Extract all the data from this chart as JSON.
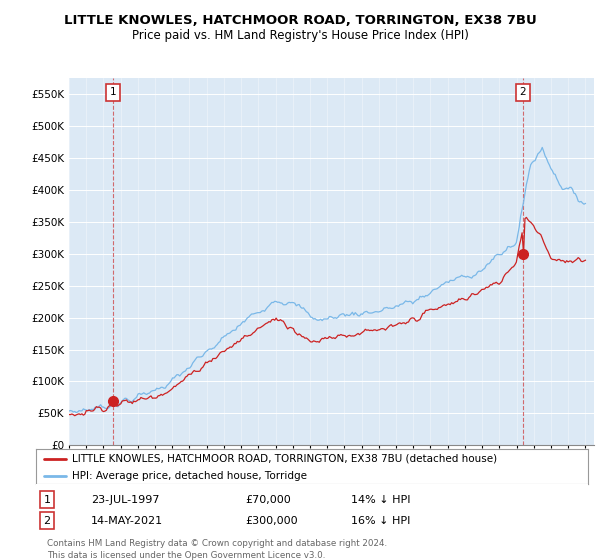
{
  "title": "LITTLE KNOWLES, HATCHMOOR ROAD, TORRINGTON, EX38 7BU",
  "subtitle": "Price paid vs. HM Land Registry's House Price Index (HPI)",
  "ylabel_ticks": [
    "£0",
    "£50K",
    "£100K",
    "£150K",
    "£200K",
    "£250K",
    "£300K",
    "£350K",
    "£400K",
    "£450K",
    "£500K",
    "£550K"
  ],
  "ytick_values": [
    0,
    50000,
    100000,
    150000,
    200000,
    250000,
    300000,
    350000,
    400000,
    450000,
    500000,
    550000
  ],
  "ylim": [
    0,
    575000
  ],
  "sale1_date": 1997.55,
  "sale1_price": 70000,
  "sale2_date": 2021.37,
  "sale2_price": 300000,
  "hpi_color": "#7ab8e8",
  "price_color": "#cc2222",
  "background_color": "#dce9f5",
  "legend_line1": "LITTLE KNOWLES, HATCHMOOR ROAD, TORRINGTON, EX38 7BU (detached house)",
  "legend_line2": "HPI: Average price, detached house, Torridge",
  "footer": "Contains HM Land Registry data © Crown copyright and database right 2024.\nThis data is licensed under the Open Government Licence v3.0.",
  "title_fontsize": 9.5,
  "subtitle_fontsize": 8.5,
  "n_points": 360
}
